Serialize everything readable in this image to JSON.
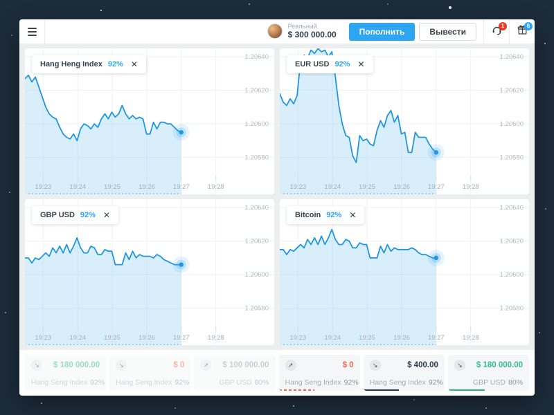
{
  "header": {
    "account_type": "Реальный",
    "balance": "$ 300 000.00",
    "deposit_button": "Пополнить",
    "withdraw_button": "Вывести",
    "support_badge": "1",
    "gifts_badge": "6"
  },
  "colors": {
    "accent_blue": "#2da5f3",
    "line_blue": "#2196e0",
    "area_blue": "rgba(160,212,245,0.40)",
    "green": "#2fbe8f",
    "red": "#f4654a",
    "dark_navy": "#2c3e50",
    "background_dark": "#1d2c3b"
  },
  "chart_data": [
    {
      "type": "area",
      "title": "Hang Heng Index",
      "payout": "92%",
      "close_label": "✕",
      "x_ticks": [
        "19:23",
        "19:24",
        "19:25",
        "19:26",
        "19:27",
        "19:28"
      ],
      "y_ticks": [
        "1.20640",
        "1.20620",
        "1.20600",
        "1.20580"
      ],
      "ylim": [
        1.20558,
        1.20645
      ],
      "series_end_time": "19:27",
      "values": [
        1.20627,
        1.20629,
        1.20625,
        1.20628,
        1.20622,
        1.20616,
        1.2061,
        1.20606,
        1.20604,
        1.20603,
        1.20598,
        1.20594,
        1.20592,
        1.20591,
        1.20594,
        1.2059,
        1.20597,
        1.206,
        1.20599,
        1.20597,
        1.206,
        1.20598,
        1.20603,
        1.20606,
        1.20603,
        1.20607,
        1.20604,
        1.20606,
        1.20611,
        1.20606,
        1.20603,
        1.20605,
        1.20603,
        1.20604,
        1.20603,
        1.20594,
        1.20594,
        1.20601,
        1.20597,
        1.20601,
        1.20601,
        1.206,
        1.206,
        1.20598,
        1.20596,
        1.20595
      ]
    },
    {
      "type": "area",
      "title": "EUR USD",
      "payout": "92%",
      "close_label": "✕",
      "x_ticks": [
        "19:23",
        "19:24",
        "19:25",
        "19:26",
        "19:27",
        "19:28"
      ],
      "y_ticks": [
        "1.20640",
        "1.20620",
        "1.20600",
        "1.20580"
      ],
      "ylim": [
        1.20558,
        1.20645
      ],
      "series_end_time": "19:27",
      "values": [
        1.20618,
        1.20613,
        1.20611,
        1.20615,
        1.20612,
        1.20617,
        1.20638,
        1.20641,
        1.20639,
        1.20644,
        1.20642,
        1.20645,
        1.20643,
        1.20644,
        1.2064,
        1.20643,
        1.20628,
        1.20611,
        1.206,
        1.20593,
        1.20592,
        1.20581,
        1.20577,
        1.20593,
        1.2059,
        1.20591,
        1.20588,
        1.20587,
        1.20596,
        1.20602,
        1.20598,
        1.20605,
        1.20608,
        1.20601,
        1.20605,
        1.20594,
        1.20595,
        1.20583,
        1.20583,
        1.20595,
        1.20592,
        1.20592,
        1.20592,
        1.20588,
        1.20585,
        1.20583
      ]
    },
    {
      "type": "area",
      "title": "GBP USD",
      "payout": "92%",
      "close_label": "✕",
      "x_ticks": [
        "19:23",
        "19:24",
        "19:25",
        "19:26",
        "19:27",
        "19:28"
      ],
      "y_ticks": [
        "1.20640",
        "1.20620",
        "1.20600",
        "1.20580"
      ],
      "ylim": [
        1.20558,
        1.20645
      ],
      "series_end_time": "19:27",
      "values": [
        1.2061,
        1.2061,
        1.20607,
        1.2061,
        1.20609,
        1.20611,
        1.20613,
        1.20611,
        1.20616,
        1.20613,
        1.20617,
        1.20613,
        1.20618,
        1.20613,
        1.20617,
        1.20622,
        1.20616,
        1.20613,
        1.20613,
        1.20617,
        1.20616,
        1.20612,
        1.20612,
        1.20615,
        1.20614,
        1.20614,
        1.20606,
        1.20606,
        1.20606,
        1.20613,
        1.20609,
        1.20614,
        1.2061,
        1.20612,
        1.20611,
        1.20611,
        1.20611,
        1.2061,
        1.20612,
        1.20611,
        1.20609,
        1.20608,
        1.20607,
        1.20606,
        1.20606,
        1.20606
      ]
    },
    {
      "type": "area",
      "title": "Bitcoin",
      "payout": "92%",
      "close_label": "✕",
      "x_ticks": [
        "19:23",
        "19:24",
        "19:25",
        "19:26",
        "19:27",
        "19:28"
      ],
      "y_ticks": [
        "1.20640",
        "1.20620",
        "1.20600",
        "1.20580"
      ],
      "ylim": [
        1.20558,
        1.20645
      ],
      "series_end_time": "19:27",
      "values": [
        1.20615,
        1.20615,
        1.20612,
        1.20615,
        1.20614,
        1.20616,
        1.20618,
        1.20616,
        1.20621,
        1.20618,
        1.20622,
        1.20618,
        1.20623,
        1.20618,
        1.20622,
        1.20627,
        1.20621,
        1.20618,
        1.20618,
        1.20621,
        1.2062,
        1.20616,
        1.20616,
        1.20619,
        1.20618,
        1.20618,
        1.2061,
        1.2061,
        1.2061,
        1.20617,
        1.20613,
        1.20618,
        1.20614,
        1.20616,
        1.20615,
        1.20615,
        1.20615,
        1.20615,
        1.20616,
        1.20615,
        1.20613,
        1.20612,
        1.20612,
        1.20611,
        1.2061,
        1.2061
      ]
    }
  ],
  "trades": [
    {
      "direction": "down",
      "arrow": "↘",
      "amount": "$ 180 000.00",
      "amount_style": "green",
      "asset": "Hang Seng Index",
      "payout": "92%",
      "active": false,
      "progress": 0,
      "progress_style": ""
    },
    {
      "direction": "down",
      "arrow": "↘",
      "amount": "$ 0",
      "amount_style": "red",
      "asset": "Hang Seng Index",
      "payout": "92%",
      "active": false,
      "progress": 0,
      "progress_style": ""
    },
    {
      "direction": "up",
      "arrow": "↗",
      "amount": "$ 100 000.00",
      "amount_style": "gray",
      "asset": "GBP USD",
      "payout": "80%",
      "active": false,
      "progress": 0,
      "progress_style": ""
    },
    {
      "direction": "up",
      "arrow": "↗",
      "amount": "$ 0",
      "amount_style": "red",
      "asset": "Hang Seng Index",
      "payout": "92%",
      "active": true,
      "progress": 0.44,
      "progress_style": "red-dashed"
    },
    {
      "direction": "down",
      "arrow": "↘",
      "amount": "$ 400.00",
      "amount_style": "dark",
      "asset": "Hang Seng Index",
      "payout": "92%",
      "active": true,
      "progress": 0.44,
      "progress_style": "dark"
    },
    {
      "direction": "down",
      "arrow": "↘",
      "amount": "$ 180 000.00",
      "amount_style": "green",
      "asset": "GBP USD",
      "payout": "80%",
      "active": true,
      "progress": 0.45,
      "progress_style": "green"
    }
  ]
}
